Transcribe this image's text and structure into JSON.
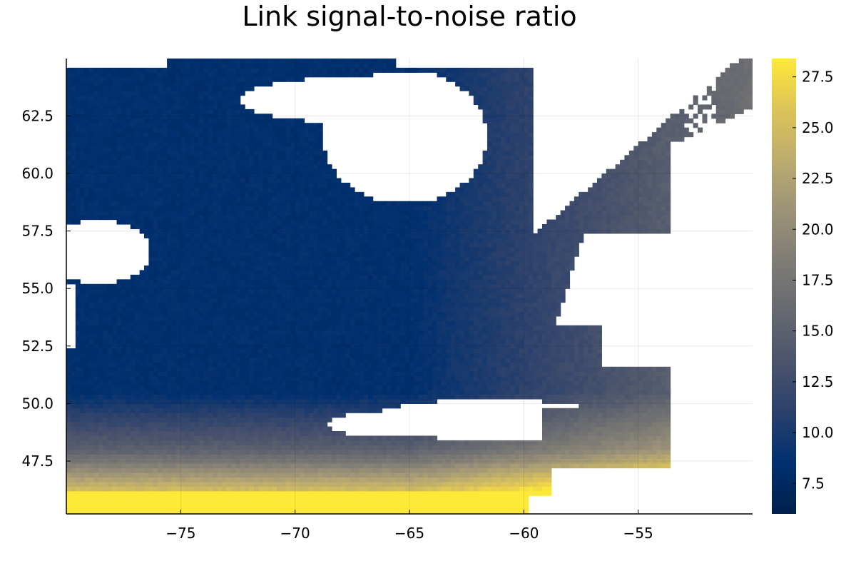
{
  "chart_data": {
    "type": "heatmap",
    "title": "Link signal-to-noise ratio",
    "xlabel": "",
    "ylabel": "",
    "xlim": [
      -80,
      -50
    ],
    "ylim": [
      45.2,
      65.0
    ],
    "x_ticks": [
      -75,
      -70,
      -65,
      -60,
      -55
    ],
    "x_tick_labels": [
      "−75",
      "−70",
      "−65",
      "−60",
      "−55"
    ],
    "y_ticks": [
      47.5,
      50.0,
      52.5,
      55.0,
      57.5,
      60.0,
      62.5
    ],
    "y_tick_labels": [
      "47.5",
      "50.0",
      "52.5",
      "55.0",
      "57.5",
      "60.0",
      "62.5"
    ],
    "grid": true,
    "colorbar": {
      "colormap": "cividis",
      "range": [
        6.0,
        28.4
      ],
      "ticks": [
        7.5,
        10.0,
        12.5,
        15.0,
        17.5,
        20.0,
        22.5,
        25.0,
        27.5
      ],
      "tick_labels": [
        "7.5",
        "10.0",
        "12.5",
        "15.0",
        "17.5",
        "20.0",
        "22.5",
        "25.0",
        "27.5"
      ],
      "stops": [
        "#00204c",
        "#00306f",
        "#2a406c",
        "#4b546c",
        "#666970",
        "#7f7c75",
        "#9c9378",
        "#bcac6e",
        "#dcc458",
        "#fee838"
      ]
    },
    "description_of_values": "SNR roughly 6-10 over interior northern land, rising to 15-20 toward the east coast and 25-28 along the southern edge near 45-46N"
  }
}
